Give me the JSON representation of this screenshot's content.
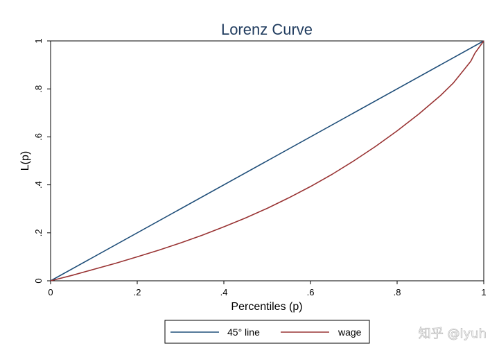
{
  "chart_data": {
    "type": "line",
    "title": "Lorenz Curve",
    "xlabel": "Percentiles (p)",
    "ylabel": "L(p)",
    "xlim": [
      0,
      1
    ],
    "ylim": [
      0,
      1
    ],
    "xticks": [
      "0",
      ".2",
      ".4",
      ".6",
      ".8",
      "1"
    ],
    "yticks": [
      "0",
      ".2",
      ".4",
      ".6",
      ".8",
      "1"
    ],
    "grid": false,
    "legend_position": "bottom",
    "series": [
      {
        "name": "45° line",
        "color": "#1f4e79",
        "x": [
          0,
          1
        ],
        "y": [
          0,
          1
        ]
      },
      {
        "name": "wage",
        "color": "#993333",
        "x": [
          0,
          0.05,
          0.1,
          0.15,
          0.2,
          0.25,
          0.3,
          0.35,
          0.4,
          0.45,
          0.5,
          0.55,
          0.6,
          0.65,
          0.7,
          0.75,
          0.8,
          0.85,
          0.9,
          0.93,
          0.95,
          0.97,
          0.98,
          0.99,
          1.0
        ],
        "y": [
          0,
          0.023,
          0.048,
          0.073,
          0.1,
          0.128,
          0.158,
          0.19,
          0.225,
          0.262,
          0.302,
          0.346,
          0.393,
          0.444,
          0.5,
          0.56,
          0.625,
          0.695,
          0.772,
          0.825,
          0.87,
          0.915,
          0.95,
          0.975,
          1.0
        ]
      }
    ]
  },
  "watermark": "知乎 @lyuh"
}
